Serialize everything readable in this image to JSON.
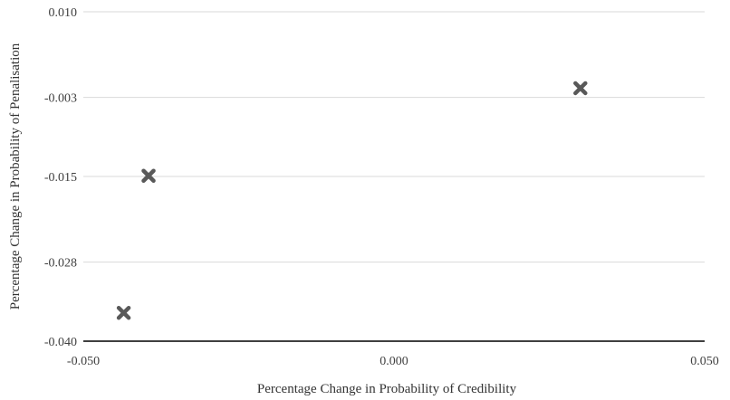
{
  "chart_data": {
    "type": "scatter",
    "xlabel": "Percentage Change in Probability of Credibility",
    "ylabel": "Percentage Change in Probability of Penalisation",
    "xlim": [
      -0.05,
      0.05
    ],
    "ylim": [
      -0.04,
      0.01
    ],
    "x_ticks": [
      "-0.050",
      "0.000",
      "0.050"
    ],
    "y_ticks": [
      "0.010",
      "-0.003",
      "-0.015",
      "-0.028",
      "-0.040"
    ],
    "grid": "horizontal",
    "marker": "x-mark",
    "series": [
      {
        "points": [
          {
            "x": -0.0435,
            "y": -0.0357
          },
          {
            "x": -0.0395,
            "y": -0.0149
          },
          {
            "x": 0.03,
            "y": -0.0016
          }
        ]
      }
    ],
    "colors": {
      "marker": "#595959",
      "grid": "#d9d9d9",
      "axis": "#000000"
    }
  }
}
